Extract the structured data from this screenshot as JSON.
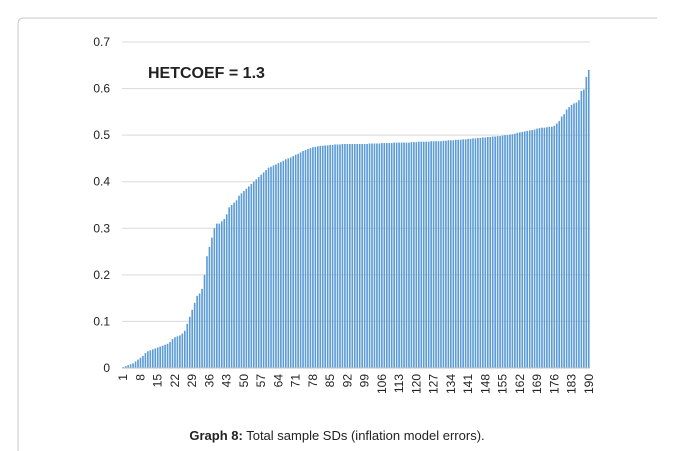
{
  "chart_data": {
    "type": "bar",
    "annotation": "HETCOEF = 1.3",
    "caption_label": "Graph 8:",
    "caption_text": "Total sample SDs (inflation model errors).",
    "color": "#5b9bd5",
    "grid": true,
    "ylim": [
      0,
      0.7
    ],
    "yticks": [
      0,
      0.1,
      0.2,
      0.3,
      0.4,
      0.5,
      0.6,
      0.7
    ],
    "categories": [
      "1",
      null,
      null,
      null,
      null,
      null,
      null,
      "8",
      null,
      null,
      null,
      null,
      null,
      null,
      "15",
      null,
      null,
      null,
      null,
      null,
      null,
      "22",
      null,
      null,
      null,
      null,
      null,
      null,
      "29",
      null,
      null,
      null,
      null,
      null,
      null,
      "36",
      null,
      null,
      null,
      null,
      null,
      null,
      "43",
      null,
      null,
      null,
      null,
      null,
      null,
      "50",
      null,
      null,
      null,
      null,
      null,
      null,
      "57",
      null,
      null,
      null,
      null,
      null,
      null,
      "64",
      null,
      null,
      null,
      null,
      null,
      null,
      "71",
      null,
      null,
      null,
      null,
      null,
      null,
      "78",
      null,
      null,
      null,
      null,
      null,
      null,
      "85",
      null,
      null,
      null,
      null,
      null,
      null,
      "92",
      null,
      null,
      null,
      null,
      null,
      null,
      "99",
      null,
      null,
      null,
      null,
      null,
      null,
      "106",
      null,
      null,
      null,
      null,
      null,
      null,
      "113",
      null,
      null,
      null,
      null,
      null,
      null,
      "120",
      null,
      null,
      null,
      null,
      null,
      null,
      "127",
      null,
      null,
      null,
      null,
      null,
      null,
      "134",
      null,
      null,
      null,
      null,
      null,
      null,
      "141",
      null,
      null,
      null,
      null,
      null,
      null,
      "148",
      null,
      null,
      null,
      null,
      null,
      null,
      "155",
      null,
      null,
      null,
      null,
      null,
      null,
      "162",
      null,
      null,
      null,
      null,
      null,
      null,
      "169",
      null,
      null,
      null,
      null,
      null,
      null,
      "176",
      null,
      null,
      null,
      null,
      null,
      null,
      "183",
      null,
      null,
      null,
      null,
      null,
      null,
      "190"
    ],
    "values": [
      0.002,
      0.004,
      0.006,
      0.008,
      0.01,
      0.014,
      0.018,
      0.022,
      0.026,
      0.032,
      0.036,
      0.038,
      0.04,
      0.042,
      0.044,
      0.046,
      0.048,
      0.05,
      0.052,
      0.056,
      0.062,
      0.066,
      0.068,
      0.07,
      0.074,
      0.08,
      0.095,
      0.11,
      0.125,
      0.14,
      0.155,
      0.16,
      0.17,
      0.2,
      0.24,
      0.26,
      0.28,
      0.3,
      0.31,
      0.31,
      0.315,
      0.32,
      0.33,
      0.345,
      0.35,
      0.355,
      0.36,
      0.37,
      0.375,
      0.38,
      0.385,
      0.39,
      0.395,
      0.4,
      0.405,
      0.41,
      0.415,
      0.42,
      0.425,
      0.43,
      0.432,
      0.435,
      0.437,
      0.44,
      0.442,
      0.445,
      0.448,
      0.45,
      0.452,
      0.455,
      0.458,
      0.46,
      0.463,
      0.466,
      0.468,
      0.47,
      0.472,
      0.474,
      0.475,
      0.476,
      0.477,
      0.477,
      0.478,
      0.478,
      0.479,
      0.479,
      0.48,
      0.48,
      0.48,
      0.481,
      0.481,
      0.481,
      0.481,
      0.481,
      0.481,
      0.481,
      0.481,
      0.481,
      0.481,
      0.481,
      0.482,
      0.482,
      0.482,
      0.482,
      0.482,
      0.483,
      0.483,
      0.483,
      0.483,
      0.483,
      0.484,
      0.484,
      0.484,
      0.484,
      0.484,
      0.484,
      0.484,
      0.485,
      0.485,
      0.485,
      0.486,
      0.486,
      0.486,
      0.486,
      0.486,
      0.487,
      0.487,
      0.487,
      0.487,
      0.487,
      0.488,
      0.488,
      0.489,
      0.489,
      0.489,
      0.49,
      0.49,
      0.49,
      0.491,
      0.491,
      0.492,
      0.492,
      0.493,
      0.493,
      0.494,
      0.494,
      0.495,
      0.495,
      0.496,
      0.496,
      0.497,
      0.497,
      0.498,
      0.498,
      0.499,
      0.5,
      0.5,
      0.501,
      0.502,
      0.503,
      0.505,
      0.506,
      0.507,
      0.508,
      0.509,
      0.51,
      0.511,
      0.512,
      0.514,
      0.515,
      0.516,
      0.516,
      0.517,
      0.518,
      0.518,
      0.52,
      0.525,
      0.53,
      0.54,
      0.545,
      0.555,
      0.56,
      0.565,
      0.568,
      0.57,
      0.575,
      0.595,
      0.598,
      0.625,
      0.64
    ]
  }
}
